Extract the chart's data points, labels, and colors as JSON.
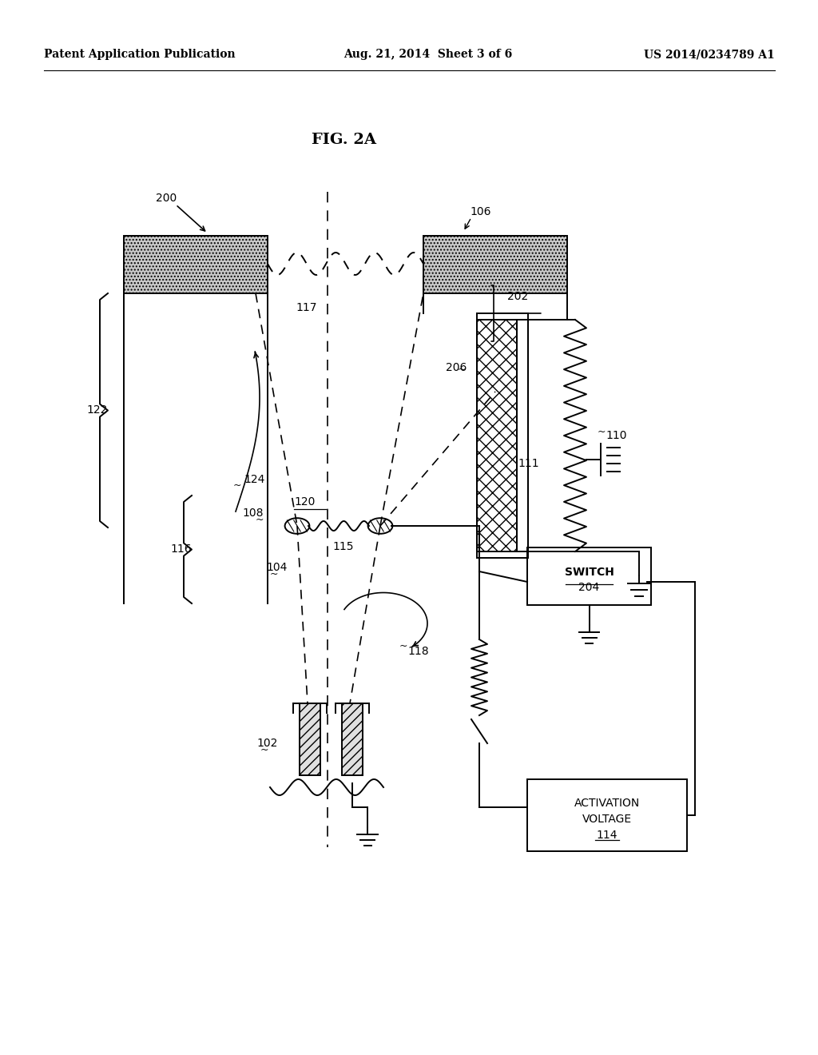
{
  "header_left": "Patent Application Publication",
  "header_center": "Aug. 21, 2014  Sheet 3 of 6",
  "header_right": "US 2014/0234789 A1",
  "title": "FIG. 2A",
  "bg_color": "#ffffff",
  "lc": "#000000"
}
